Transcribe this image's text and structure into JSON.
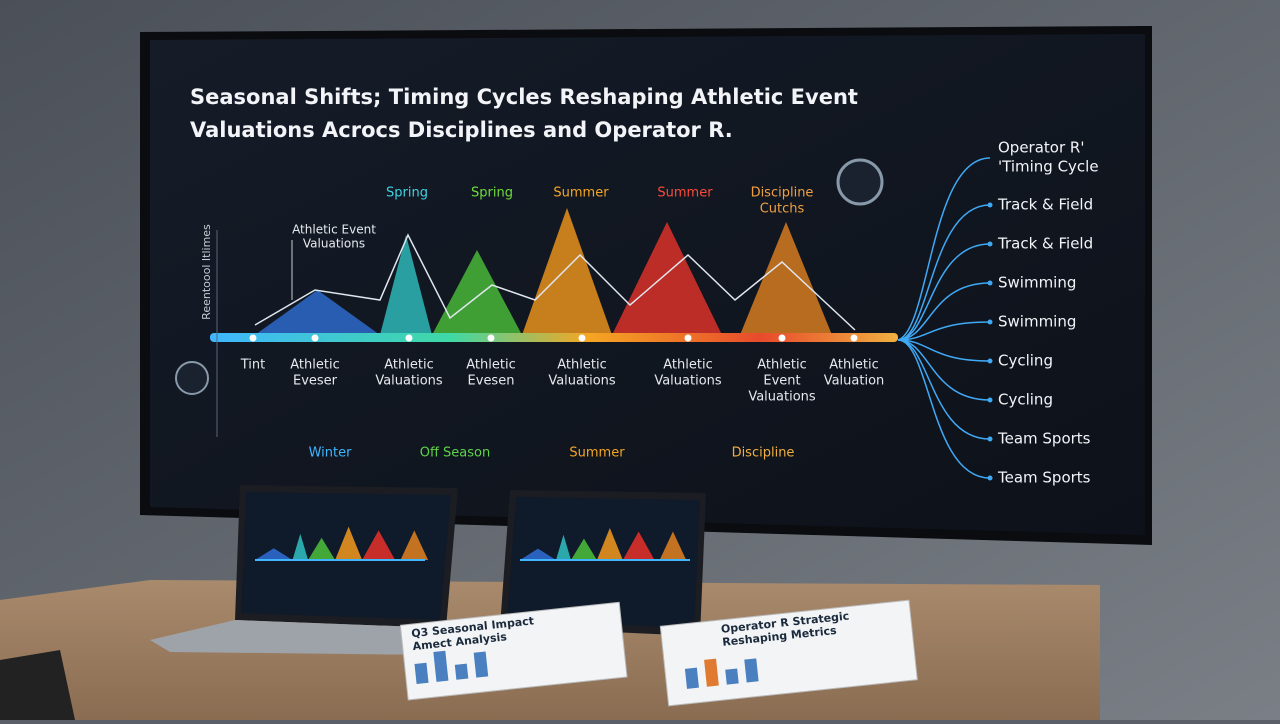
{
  "screen": {
    "title_lines": [
      "Seasonal Shifts; Timing Cycles Reshaping Athletic Event",
      "Valuations Acrocs Disciplines and Operator R."
    ],
    "y_axis_label": "Reentoool Itlimes",
    "annotation_lines": [
      "Athletic Event",
      "Valuations"
    ],
    "season_labels": [
      [
        "Spring"
      ],
      [
        "Spring"
      ],
      [
        "Summer"
      ],
      [
        "Summer"
      ],
      [
        "Discipline",
        "Cutchs"
      ]
    ],
    "x_labels": [
      [
        "Tint"
      ],
      [
        "Athletic",
        "Eveser"
      ],
      [
        "Athletic",
        "Valuations"
      ],
      [
        "Athletic",
        "Evesen"
      ],
      [
        "Athletic",
        "Valuations"
      ],
      [
        "Athletic",
        "Valuations"
      ],
      [
        "Athletic",
        "Event",
        "Valuations"
      ],
      [
        "Athletic",
        "Valuation"
      ]
    ],
    "period_labels": [
      "Winter",
      "Off Season",
      "Summer",
      "Discipline"
    ],
    "legend_title_lines": [
      "Operator R'",
      "'Timing Cycle"
    ],
    "legend": [
      "Track & Field",
      "Track & Field",
      "Swimming",
      "Swimming",
      "Cycling",
      "Cycling",
      "Team Sports",
      "Team Sports"
    ]
  },
  "documents": [
    {
      "title_lines": [
        "Q3 Seasonal Impact",
        "Amect Analysis"
      ]
    },
    {
      "title_lines": [
        "Operator R Strategic",
        "Reshaping Metrics"
      ]
    }
  ]
}
